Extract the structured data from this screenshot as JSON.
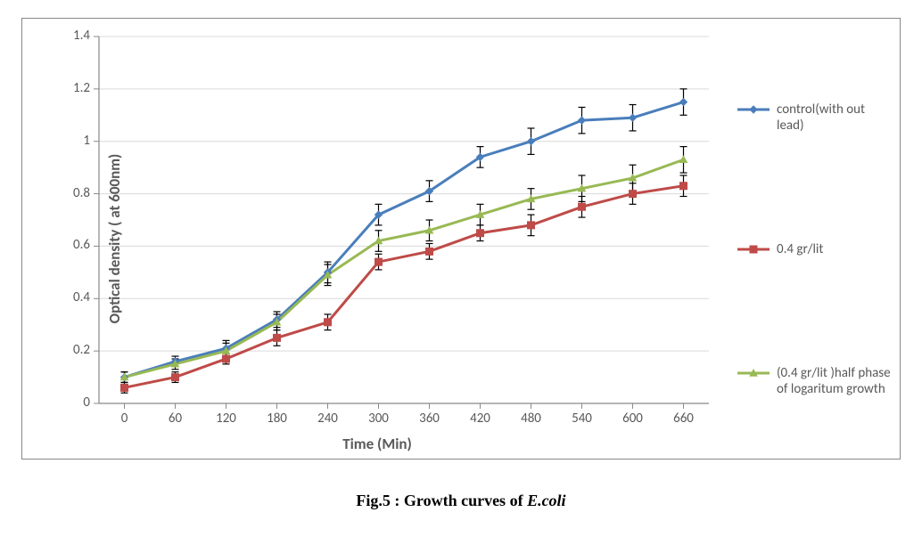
{
  "chart": {
    "type": "line_with_markers_and_error_bars",
    "background_color": "#ffffff",
    "border_color": "#888888",
    "grid_color": "#d9d9d9",
    "axis_color": "#898989",
    "tick_font_size": 15,
    "label_font_size": 17,
    "label_font_weight": "bold",
    "y_axis_title": "Optical density ( at 600nm)",
    "x_axis_title": "Time (Min)",
    "xlim": [
      -0.5,
      11.5
    ],
    "ylim": [
      0,
      1.4
    ],
    "ytick_step": 0.2,
    "categories": [
      "0",
      "60",
      "120",
      "180",
      "240",
      "300",
      "360",
      "420",
      "480",
      "540",
      "600",
      "660"
    ],
    "yticks": [
      "0",
      "0.2",
      "0.4",
      "0.6",
      "0.8",
      "1",
      "1.2",
      "1.4"
    ],
    "line_width": 3,
    "marker_size": 8,
    "error_bar_color": "#000000",
    "error_bar_width": 1.2,
    "error_cap_width": 8,
    "series": [
      {
        "name": "control(with out lead)",
        "color": "#4a7ebb",
        "marker": "diamond",
        "values": [
          0.1,
          0.16,
          0.21,
          0.32,
          0.5,
          0.72,
          0.81,
          0.94,
          1.0,
          1.08,
          1.09,
          1.15
        ],
        "errors": [
          0.02,
          0.02,
          0.03,
          0.03,
          0.04,
          0.04,
          0.04,
          0.04,
          0.05,
          0.05,
          0.05,
          0.05
        ]
      },
      {
        "name": "0.4 gr/lit",
        "color": "#be4b48",
        "marker": "square",
        "values": [
          0.06,
          0.1,
          0.17,
          0.25,
          0.31,
          0.54,
          0.58,
          0.65,
          0.68,
          0.75,
          0.8,
          0.83
        ],
        "errors": [
          0.02,
          0.02,
          0.02,
          0.03,
          0.03,
          0.03,
          0.03,
          0.03,
          0.04,
          0.04,
          0.04,
          0.04
        ]
      },
      {
        "name": "(0.4 gr/lit )half phase of logaritum growth",
        "color": "#98b954",
        "marker": "triangle",
        "values": [
          0.1,
          0.15,
          0.2,
          0.31,
          0.49,
          0.62,
          0.66,
          0.72,
          0.78,
          0.82,
          0.86,
          0.93
        ],
        "errors": [
          0.02,
          0.02,
          0.03,
          0.03,
          0.04,
          0.04,
          0.04,
          0.04,
          0.04,
          0.05,
          0.05,
          0.05
        ]
      }
    ]
  },
  "caption": {
    "prefix": "Fig.5 : Growth curves of ",
    "italic": "E.coli"
  }
}
